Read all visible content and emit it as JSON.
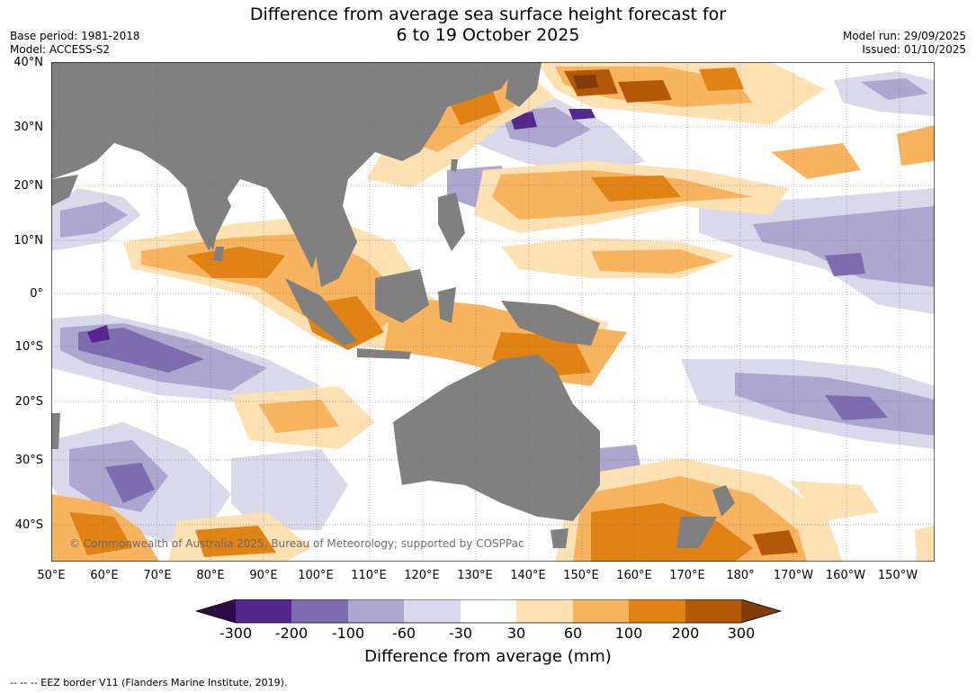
{
  "title_line1": "Difference from average sea surface height forecast for",
  "title_line2": "6 to 19 October 2025",
  "meta_left": [
    "Base period: 1981-2018",
    "Model: ACCESS-S2"
  ],
  "meta_right": [
    "Model run: 29/09/2025",
    "Issued: 01/10/2025"
  ],
  "lat_labels": [
    "40°N",
    "30°N",
    "20°N",
    "10°N",
    "0°",
    "10°S",
    "20°S",
    "30°S",
    "40°S"
  ],
  "lon_labels": [
    "50°E",
    "60°E",
    "70°E",
    "80°E",
    "90°E",
    "100°E",
    "110°E",
    "120°E",
    "130°E",
    "140°E",
    "150°E",
    "160°E",
    "170°E",
    "180°",
    "170°W",
    "160°W",
    "150°W"
  ],
  "copyright": "© Commonwealth of Australia 2025, Bureau of Meteorology; supported by COSPPac",
  "colorbar": {
    "ticks": [
      "-300",
      "-200",
      "-100",
      "-60",
      "-30",
      "30",
      "60",
      "100",
      "200",
      "300"
    ],
    "colors": {
      "below_min": "#2d0a4a",
      "m300_m200": "#54278f",
      "m200_m100": "#7d6cae",
      "m100_m60": "#ada7cf",
      "m60_m30": "#dad9ec",
      "m30_30": "#ffffff",
      "p30_60": "#fde1b3",
      "p60_100": "#f7b35e",
      "p100_200": "#e08214",
      "p200_300": "#b35806",
      "above_max": "#7f3b08"
    },
    "label": "Difference from average (mm)"
  },
  "land_color": "#808080",
  "footnote": "--  --  -- EEZ border V11 (Flanders Marine Institute, 2019)."
}
